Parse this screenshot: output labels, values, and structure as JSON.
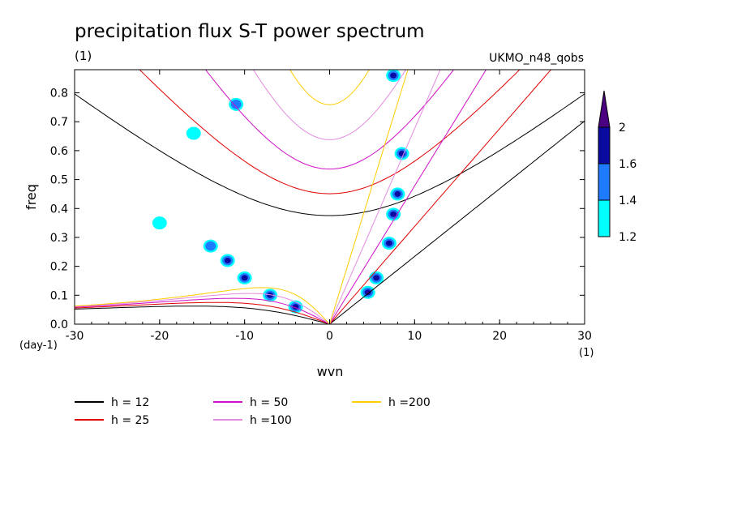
{
  "chart_data": {
    "type": "heatmap",
    "title": "precipitation flux S-T power spectrum",
    "subtitle": "(1)",
    "model_label": "UKMO_n48_qobs",
    "xlabel": "wvn",
    "ylabel": "freq",
    "x_unit": "(1)",
    "y_unit": "(day-1)",
    "xlim": [
      -30,
      30
    ],
    "ylim": [
      0,
      0.88
    ],
    "x_ticks": [
      -30,
      -20,
      -10,
      0,
      10,
      20,
      30
    ],
    "y_ticks": [
      0.0,
      0.1,
      0.2,
      0.3,
      0.4,
      0.5,
      0.6,
      0.7,
      0.8
    ],
    "x_tick_labels": [
      "-30",
      "-20",
      "-10",
      "0",
      "10",
      "20",
      "30"
    ],
    "y_tick_labels": [
      "0.0",
      "0.1",
      "0.2",
      "0.3",
      "0.4",
      "0.5",
      "0.6",
      "0.7",
      "0.8"
    ],
    "colorbar": {
      "levels": [
        1.2,
        1.4,
        1.6,
        2
      ],
      "level_labels": [
        "1.2",
        "1.4",
        "1.6",
        "2"
      ],
      "colors": [
        "#00ffff",
        "#1e7bff",
        "#0a0aa0",
        "#4b0082"
      ]
    },
    "dispersion_curves": [
      {
        "name": "h = 12",
        "h": 12,
        "color": "#000000"
      },
      {
        "name": "h = 25",
        "h": 25,
        "color": "#e00000"
      },
      {
        "name": "h = 50",
        "h": 50,
        "color": "#d010c8"
      },
      {
        "name": "h =100",
        "h": 100,
        "color": "#e48ce0"
      },
      {
        "name": "h =200",
        "h": 200,
        "color": "#ffcc00"
      }
    ],
    "signal_regions": [
      {
        "x": 4.5,
        "y": 0.11,
        "level": 2.0
      },
      {
        "x": 5.5,
        "y": 0.16,
        "level": 1.8
      },
      {
        "x": 7,
        "y": 0.28,
        "level": 1.6
      },
      {
        "x": 7.5,
        "y": 0.38,
        "level": 1.7
      },
      {
        "x": 8,
        "y": 0.45,
        "level": 1.6
      },
      {
        "x": 8.5,
        "y": 0.59,
        "level": 1.7
      },
      {
        "x": 7.5,
        "y": 0.86,
        "level": 1.8
      },
      {
        "x": -4,
        "y": 0.06,
        "level": 1.8
      },
      {
        "x": -7,
        "y": 0.1,
        "level": 1.8
      },
      {
        "x": -10,
        "y": 0.16,
        "level": 1.7
      },
      {
        "x": -12,
        "y": 0.22,
        "level": 1.6
      },
      {
        "x": -14,
        "y": 0.27,
        "level": 1.5
      },
      {
        "x": -11,
        "y": 0.76,
        "level": 1.4
      },
      {
        "x": -16,
        "y": 0.66,
        "level": 1.3
      },
      {
        "x": -20,
        "y": 0.35,
        "level": 1.3
      }
    ]
  }
}
